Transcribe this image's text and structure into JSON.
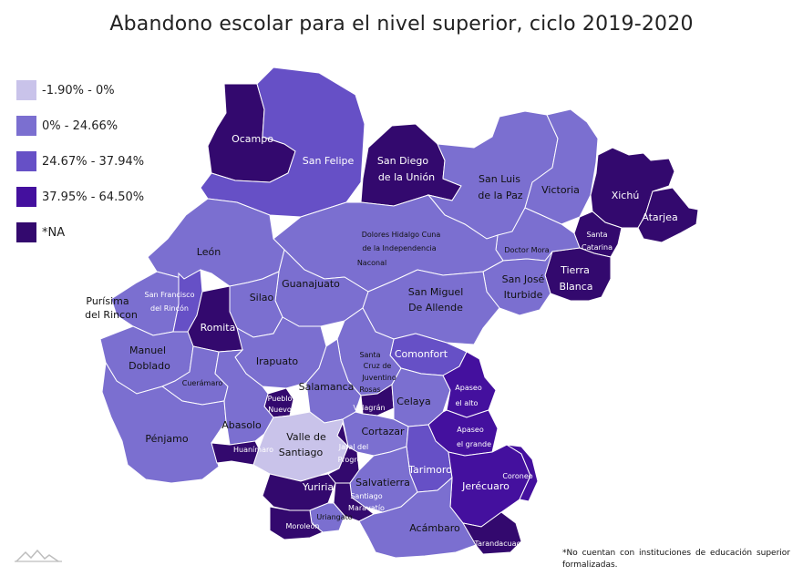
{
  "title": "Abandono escolar para el nivel superior, ciclo 2019-2020",
  "legend": [
    {
      "label": "-1.90% - 0%",
      "color": "#c9c3ea"
    },
    {
      "label": "0% - 24.66%",
      "color": "#7b6fd0"
    },
    {
      "label": "24.67% - 37.94%",
      "color": "#6650c6"
    },
    {
      "label": "37.95% - 64.50%",
      "color": "#44109e"
    },
    {
      "label": "*NA",
      "color": "#33096e"
    }
  ],
  "footnote": "*No cuentan con instituciones de educación superior formalizadas.",
  "municipalities": [
    {
      "name": "Ocampo",
      "class": "*NA",
      "color": "#33096e",
      "text": "light"
    },
    {
      "name": "San Felipe",
      "class": "24.67% - 37.94%",
      "color": "#6650c6",
      "text": "light"
    },
    {
      "name": "San Diego de la Unión",
      "class": "*NA",
      "color": "#33096e",
      "text": "light"
    },
    {
      "name": "San Luis de la Paz",
      "class": "0% - 24.66%",
      "color": "#7b6fd0",
      "text": "dark"
    },
    {
      "name": "Victoria",
      "class": "0% - 24.66%",
      "color": "#7b6fd0",
      "text": "dark"
    },
    {
      "name": "Xichú",
      "class": "*NA",
      "color": "#33096e",
      "text": "light"
    },
    {
      "name": "Atarjea",
      "class": "*NA",
      "color": "#33096e",
      "text": "light"
    },
    {
      "name": "Santa Catarina",
      "class": "*NA",
      "color": "#33096e",
      "text": "light"
    },
    {
      "name": "Tierra Blanca",
      "class": "*NA",
      "color": "#33096e",
      "text": "light"
    },
    {
      "name": "Doctor Mora",
      "class": "0% - 24.66%",
      "color": "#7b6fd0",
      "text": "dark"
    },
    {
      "name": "San José Iturbide",
      "class": "0% - 24.66%",
      "color": "#7b6fd0",
      "text": "dark"
    },
    {
      "name": "Dolores Hidalgo Cuna de la Independencia Naconal",
      "class": "0% - 24.66%",
      "color": "#7b6fd0",
      "text": "dark"
    },
    {
      "name": "León",
      "class": "0% - 24.66%",
      "color": "#7b6fd0",
      "text": "dark"
    },
    {
      "name": "Guanajuato",
      "class": "0% - 24.66%",
      "color": "#7b6fd0",
      "text": "dark"
    },
    {
      "name": "Silao",
      "class": "0% - 24.66%",
      "color": "#7b6fd0",
      "text": "dark"
    },
    {
      "name": "San Miguel De Allende",
      "class": "0% - 24.66%",
      "color": "#7b6fd0",
      "text": "dark"
    },
    {
      "name": "Purísima del Rincon",
      "class": "0% - 24.66%",
      "color": "#7b6fd0",
      "text": "dark"
    },
    {
      "name": "San Francisco del Rincón",
      "class": "24.67% - 37.94%",
      "color": "#6650c6",
      "text": "light"
    },
    {
      "name": "Romita",
      "class": "*NA",
      "color": "#33096e",
      "text": "light"
    },
    {
      "name": "Manuel Doblado",
      "class": "0% - 24.66%",
      "color": "#7b6fd0",
      "text": "dark"
    },
    {
      "name": "Irapuato",
      "class": "0% - 24.66%",
      "color": "#7b6fd0",
      "text": "dark"
    },
    {
      "name": "Comonfort",
      "class": "24.67% - 37.94%",
      "color": "#6650c6",
      "text": "light"
    },
    {
      "name": "Santa Cruz de Juventino Rosas",
      "class": "0% - 24.66%",
      "color": "#7b6fd0",
      "text": "dark"
    },
    {
      "name": "Cuerámaro",
      "class": "0% - 24.66%",
      "color": "#7b6fd0",
      "text": "dark"
    },
    {
      "name": "Salamanca",
      "class": "0% - 24.66%",
      "color": "#7b6fd0",
      "text": "dark"
    },
    {
      "name": "Pueblo Nuevo",
      "class": "*NA",
      "color": "#33096e",
      "text": "light"
    },
    {
      "name": "Villagrán",
      "class": "*NA",
      "color": "#33096e",
      "text": "light"
    },
    {
      "name": "Celaya",
      "class": "0% - 24.66%",
      "color": "#7b6fd0",
      "text": "dark"
    },
    {
      "name": "Apaseo el alto",
      "class": "37.95% - 64.50%",
      "color": "#44109e",
      "text": "light"
    },
    {
      "name": "Apaseo el grande",
      "class": "37.95% - 64.50%",
      "color": "#44109e",
      "text": "light"
    },
    {
      "name": "Pénjamo",
      "class": "0% - 24.66%",
      "color": "#7b6fd0",
      "text": "dark"
    },
    {
      "name": "Abasolo",
      "class": "0% - 24.66%",
      "color": "#7b6fd0",
      "text": "dark"
    },
    {
      "name": "Valle de Santiago",
      "class": "-1.90% - 0%",
      "color": "#c9c3ea",
      "text": "dark"
    },
    {
      "name": "Cortazar",
      "class": "0% - 24.66%",
      "color": "#7b6fd0",
      "text": "dark"
    },
    {
      "name": "Huanímaro",
      "class": "*NA",
      "color": "#33096e",
      "text": "light"
    },
    {
      "name": "Jaral del Progreso",
      "class": "*NA",
      "color": "#33096e",
      "text": "light"
    },
    {
      "name": "Tarimoro",
      "class": "24.67% - 37.94%",
      "color": "#6650c6",
      "text": "light"
    },
    {
      "name": "Yuriria",
      "class": "*NA",
      "color": "#33096e",
      "text": "light"
    },
    {
      "name": "Salvatierra",
      "class": "0% - 24.66%",
      "color": "#7b6fd0",
      "text": "dark"
    },
    {
      "name": "Jerécuaro",
      "class": "37.95% - 64.50%",
      "color": "#44109e",
      "text": "light"
    },
    {
      "name": "Coroneo",
      "class": "37.95% - 64.50%",
      "color": "#44109e",
      "text": "light"
    },
    {
      "name": "Santiago Maravatío",
      "class": "*NA",
      "color": "#33096e",
      "text": "light"
    },
    {
      "name": "Uriangato",
      "class": "0% - 24.66%",
      "color": "#7b6fd0",
      "text": "dark"
    },
    {
      "name": "Moroleón",
      "class": "*NA",
      "color": "#33096e",
      "text": "light"
    },
    {
      "name": "Acámbaro",
      "class": "0% - 24.66%",
      "color": "#7b6fd0",
      "text": "dark"
    },
    {
      "name": "Tarandacuao",
      "class": "*NA",
      "color": "#33096e",
      "text": "light"
    }
  ]
}
